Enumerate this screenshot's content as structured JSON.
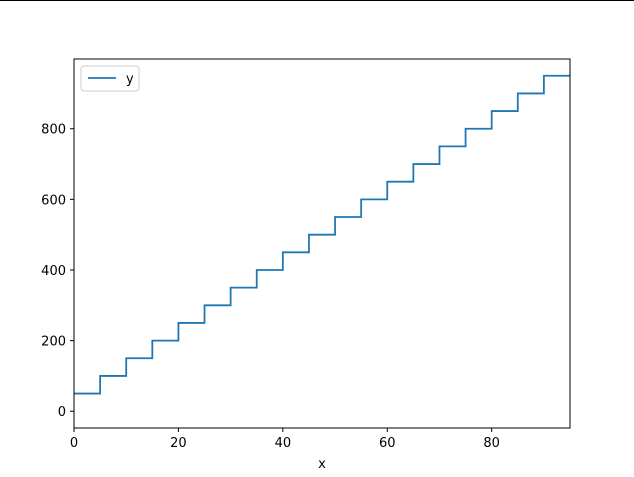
{
  "chart_data": {
    "type": "line",
    "drawstyle": "steps-post",
    "xlabel": "x",
    "ylabel": "",
    "xlim": [
      0,
      95
    ],
    "ylim": [
      -47.5,
      997.5
    ],
    "xticks": [
      0,
      20,
      40,
      60,
      80
    ],
    "xtick_labels": [
      "0",
      "20",
      "40",
      "60",
      "80"
    ],
    "yticks": [
      0,
      200,
      400,
      600,
      800
    ],
    "ytick_labels": [
      "0",
      "200",
      "400",
      "600",
      "800"
    ],
    "grid": false,
    "legend_position": "upper left",
    "series": [
      {
        "name": "y",
        "color": "#1f77b4",
        "x": [
          0,
          5,
          10,
          15,
          20,
          25,
          30,
          35,
          40,
          45,
          50,
          55,
          60,
          65,
          70,
          75,
          80,
          85,
          90,
          95
        ],
        "values": [
          50,
          100,
          150,
          200,
          250,
          300,
          350,
          400,
          450,
          500,
          550,
          600,
          650,
          700,
          750,
          800,
          850,
          900,
          950,
          950
        ]
      }
    ]
  }
}
